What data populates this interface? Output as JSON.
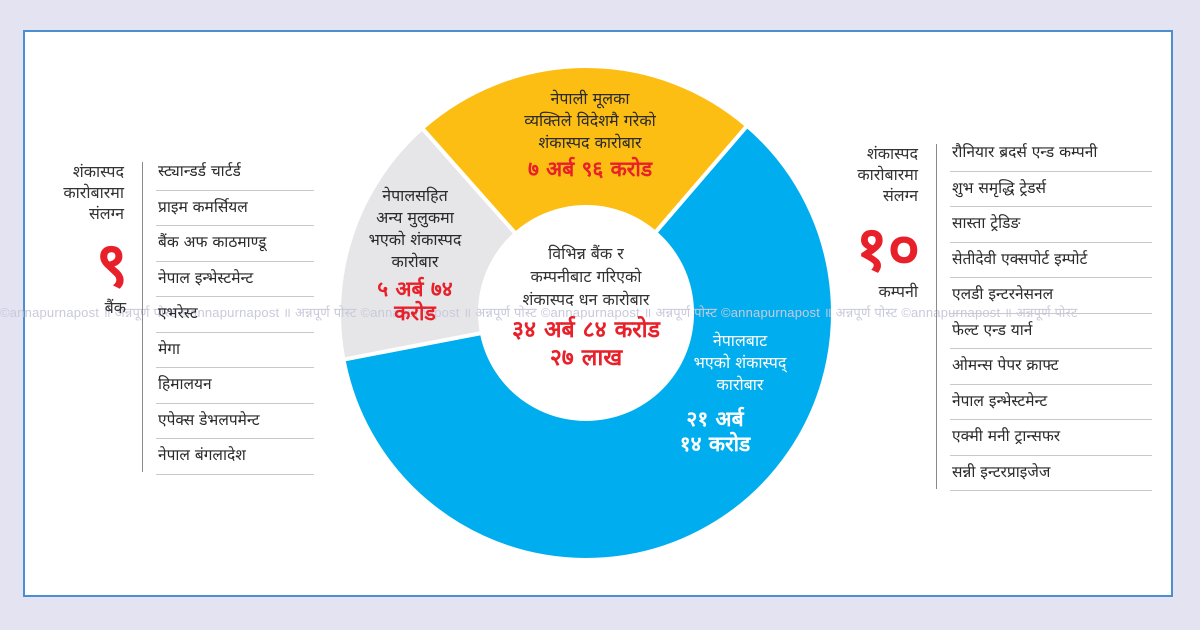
{
  "colors": {
    "background": "#e3e3f1",
    "frame_border": "#4a8fd0",
    "blue_segment": "#00aeef",
    "yellow_segment": "#fdbe14",
    "gray_segment": "#e6e6e8",
    "accent_red": "#e8202a"
  },
  "watermark": "©annapurnapost ॥ अन्नपूर्ण पोस्ट ©annapurnapost ॥ अन्नपूर्ण पोस्ट ©annapurnapost ॥ अन्नपूर्ण पोस्ट ©annapurnapost ॥ अन्नपूर्ण पोस्ट ©annapurnapost ॥ अन्नपूर्ण पोस्ट ©annapurnapost ॥ अन्नपूर्ण पोस्ट",
  "banks": {
    "heading": [
      "शंकास्पद",
      "कारोबारमा",
      "संलग्न"
    ],
    "count": "९",
    "unit": "बैंक",
    "items": [
      "स्ट्यान्डर्ड चार्टर्ड",
      "प्राइम कमर्सियल",
      "बैंक अफ काठमाण्डू",
      "नेपाल इन्भेस्टमेन्ट",
      "एभरेस्ट",
      "मेगा",
      "हिमालयन",
      "एपेक्स डेभलपमेन्ट",
      "नेपाल बंगलादेश"
    ]
  },
  "companies": {
    "heading": [
      "शंकास्पद",
      "कारोबारमा",
      "संलग्न"
    ],
    "count": "१०",
    "unit": "कम्पनी",
    "items": [
      "रौनियार ब्रदर्स एन्ड कम्पनी",
      "शुभ समृद्धि ट्रेडर्स",
      "सास्ता ट्रेडिङ",
      "सेतीदेवी एक्सपोर्ट इम्पोर्ट",
      "एलडी इन्टरनेसनल",
      "फेल्ट एन्ड यार्न",
      "ओमन्स पेपर क्राफ्ट",
      "नेपाल इन्भेस्टमेन्ट",
      "एक्मी मनी ट्रान्सफर",
      "सन्नी इन्टरप्राइजेज"
    ]
  },
  "center": {
    "label": [
      "विभिन्न बैंक र",
      "कम्पनीबाट गरिएको",
      "शंकास्पद धन कारोबार"
    ],
    "total": [
      "३४ अर्ब ८४ करोड",
      "२७ लाख"
    ]
  },
  "segments": {
    "yellow": {
      "label": [
        "नेपाली मूलका",
        "व्यक्तिले विदेशमै गरेको",
        "शंकास्पद कारोबार"
      ],
      "value": [
        "७ अर्ब ९६ करोड"
      ]
    },
    "gray": {
      "label": [
        "नेपालसहित",
        "अन्य मुलुकमा",
        "भएको शंकास्पद",
        "कारोबार"
      ],
      "value": [
        "५ अर्ब ७४",
        "करोड"
      ]
    },
    "blue": {
      "label": [
        "नेपालबाट",
        "भएको शंकास्पद्",
        "कारोबार"
      ],
      "value": [
        "२१ अर्ब",
        "१४ करोड"
      ]
    }
  },
  "chart_data": {
    "type": "pie",
    "variant": "donut",
    "title": "विभिन्न बैंक र कम्पनीबाट गरिएको शंकास्पद धन कारोबार",
    "total_label": "३४ अर्ब ८४ करोड २७ लाख",
    "total_value_npr_crore": 3484.27,
    "categories": [
      "नेपालबाट भएको शंकास्पद् कारोबार",
      "नेपाली मूलका व्यक्तिले विदेशमै गरेको शंकास्पद कारोबार",
      "नेपालसहित अन्य मुलुकमा भएको शंकास्पद कारोबार"
    ],
    "values": [
      2114,
      796,
      574
    ],
    "value_labels": [
      "२१ अर्ब १४ करोड",
      "७ अर्ब ९६ करोड",
      "५ अर्ब ७४ करोड"
    ],
    "unit": "करोड (NPR crore)",
    "colors": [
      "#00aeef",
      "#fdbe14",
      "#e6e6e8"
    ],
    "side_lists": {
      "banks_count": 9,
      "companies_count": 10
    }
  }
}
